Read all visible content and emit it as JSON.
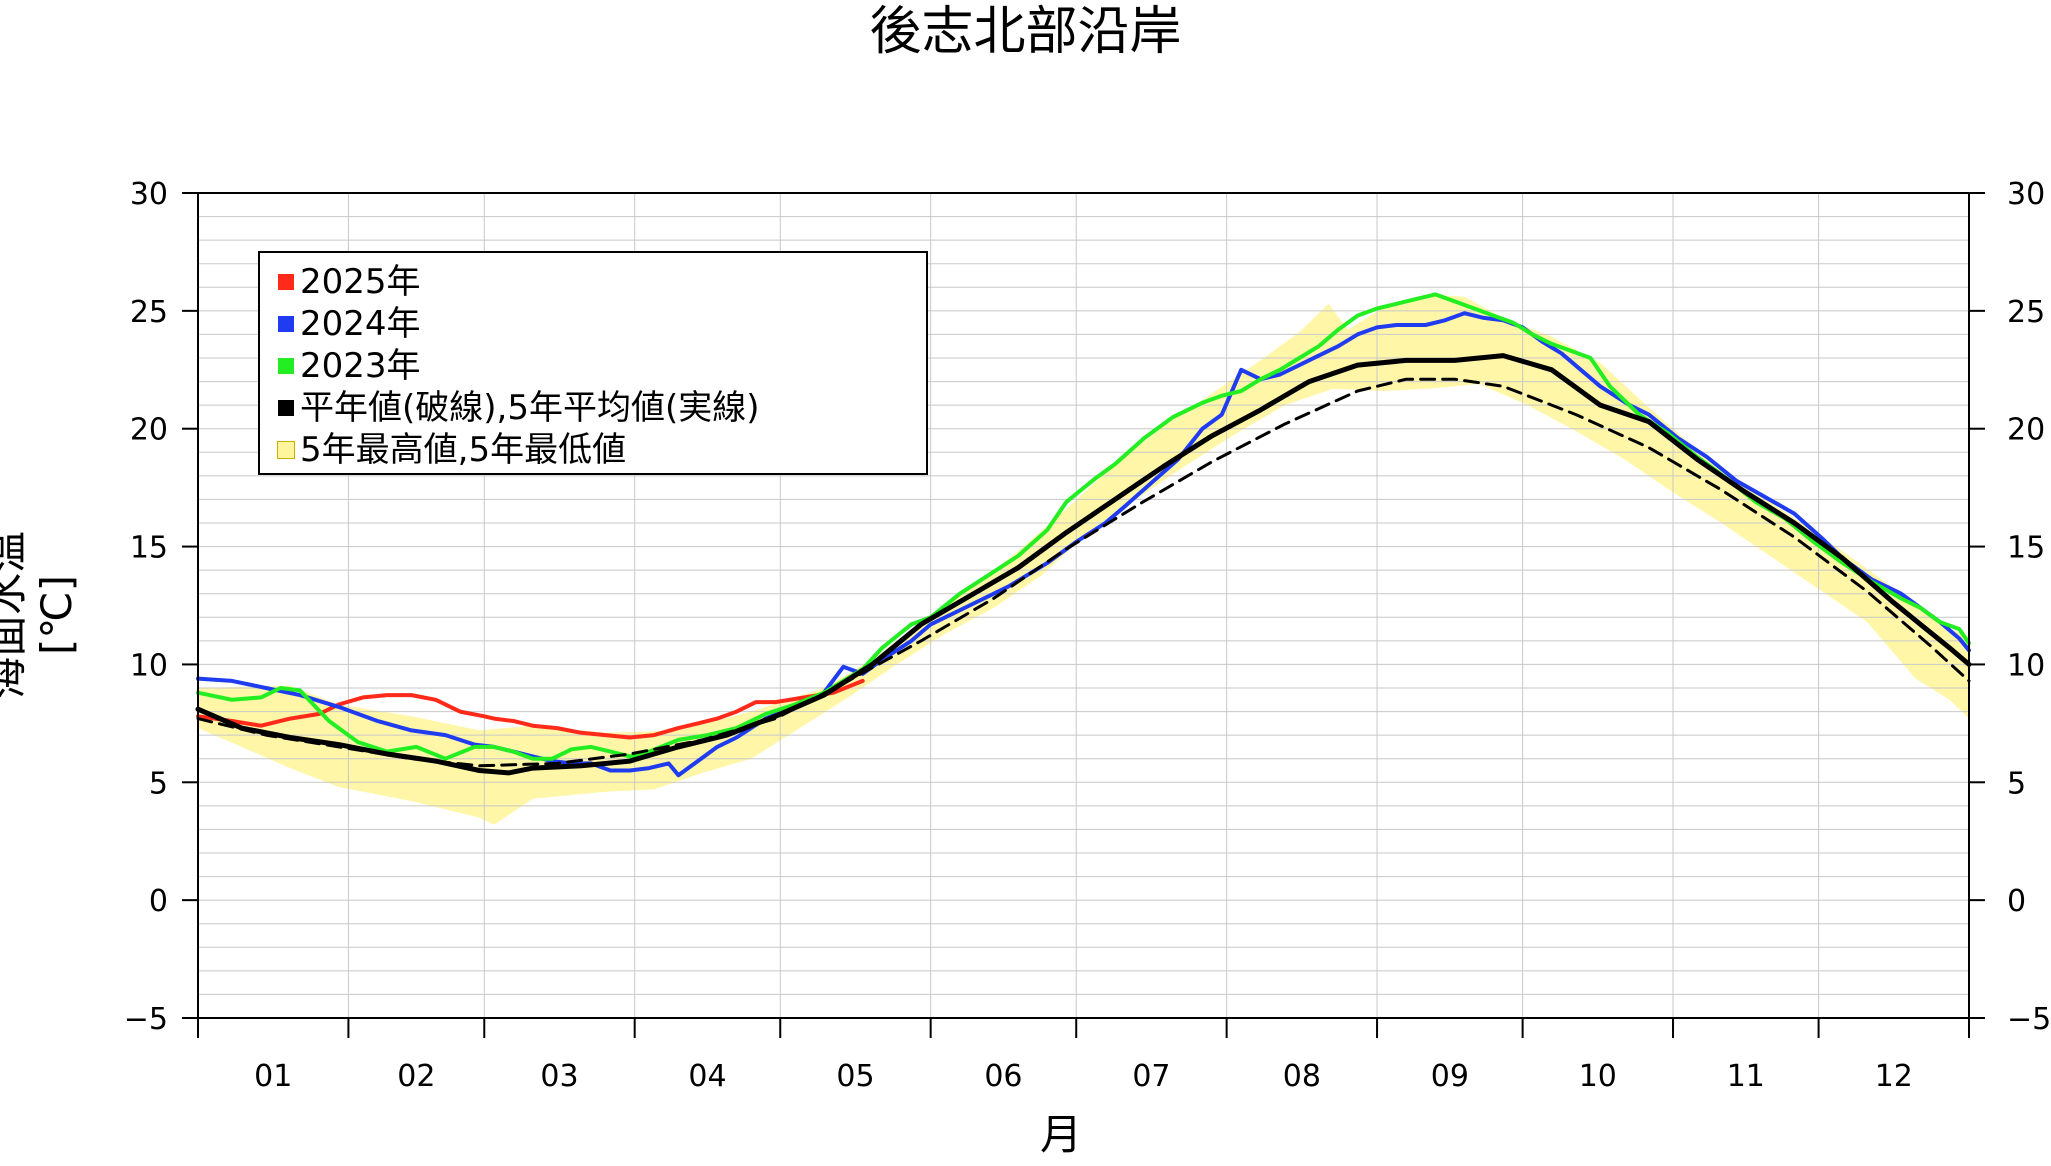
{
  "chart_data": {
    "type": "line",
    "title": "後志北部沿岸",
    "xlabel": "月",
    "ylabel": "海面水温[℃]",
    "ylim": [
      -5,
      30
    ],
    "yticks": [
      "−5",
      "0",
      "5",
      "10",
      "15",
      "20",
      "25",
      "30"
    ],
    "month_labels": [
      "01",
      "02",
      "03",
      "04",
      "05",
      "06",
      "07",
      "08",
      "09",
      "10",
      "11",
      "12"
    ],
    "grid": true,
    "legend_position": "top-left",
    "x_unit": "day of year",
    "series": [
      {
        "name": "2025年",
        "color": "#ff2a1a",
        "points": [
          [
            1,
            7.8
          ],
          [
            8,
            7.6
          ],
          [
            14,
            7.4
          ],
          [
            20,
            7.7
          ],
          [
            26,
            7.9
          ],
          [
            30,
            8.3
          ],
          [
            35,
            8.6
          ],
          [
            40,
            8.7
          ],
          [
            45,
            8.7
          ],
          [
            50,
            8.5
          ],
          [
            55,
            8.0
          ],
          [
            60,
            7.8
          ],
          [
            62,
            7.7
          ],
          [
            66,
            7.6
          ],
          [
            70,
            7.4
          ],
          [
            75,
            7.3
          ],
          [
            80,
            7.1
          ],
          [
            85,
            7.0
          ],
          [
            90,
            6.9
          ],
          [
            95,
            7.0
          ],
          [
            100,
            7.3
          ],
          [
            104,
            7.5
          ],
          [
            108,
            7.7
          ],
          [
            112,
            8.0
          ],
          [
            116,
            8.4
          ],
          [
            120,
            8.4
          ],
          [
            126,
            8.6
          ],
          [
            132,
            8.8
          ],
          [
            138,
            9.3
          ]
        ]
      },
      {
        "name": "2024年",
        "color": "#1f3cf0",
        "points": [
          [
            1,
            9.4
          ],
          [
            8,
            9.3
          ],
          [
            15,
            9.0
          ],
          [
            22,
            8.7
          ],
          [
            30,
            8.2
          ],
          [
            38,
            7.6
          ],
          [
            45,
            7.2
          ],
          [
            52,
            7.0
          ],
          [
            58,
            6.6
          ],
          [
            62,
            6.5
          ],
          [
            66,
            6.3
          ],
          [
            70,
            6.1
          ],
          [
            74,
            5.9
          ],
          [
            78,
            5.8
          ],
          [
            82,
            5.8
          ],
          [
            86,
            5.5
          ],
          [
            90,
            5.5
          ],
          [
            94,
            5.6
          ],
          [
            98,
            5.8
          ],
          [
            100,
            5.3
          ],
          [
            104,
            5.9
          ],
          [
            108,
            6.5
          ],
          [
            112,
            6.9
          ],
          [
            118,
            7.7
          ],
          [
            124,
            8.2
          ],
          [
            130,
            8.8
          ],
          [
            134,
            9.9
          ],
          [
            138,
            9.6
          ],
          [
            142,
            10.2
          ],
          [
            148,
            11.0
          ],
          [
            152,
            11.7
          ],
          [
            160,
            12.5
          ],
          [
            168,
            13.3
          ],
          [
            176,
            14.3
          ],
          [
            182,
            15.2
          ],
          [
            188,
            16.0
          ],
          [
            192,
            16.7
          ],
          [
            198,
            17.8
          ],
          [
            203,
            18.7
          ],
          [
            208,
            20.0
          ],
          [
            212,
            20.6
          ],
          [
            216,
            22.5
          ],
          [
            220,
            22.1
          ],
          [
            224,
            22.3
          ],
          [
            228,
            22.7
          ],
          [
            232,
            23.1
          ],
          [
            236,
            23.5
          ],
          [
            240,
            24.0
          ],
          [
            244,
            24.3
          ],
          [
            248,
            24.4
          ],
          [
            254,
            24.4
          ],
          [
            258,
            24.6
          ],
          [
            262,
            24.9
          ],
          [
            266,
            24.7
          ],
          [
            270,
            24.6
          ],
          [
            274,
            24.3
          ],
          [
            278,
            23.7
          ],
          [
            282,
            23.2
          ],
          [
            286,
            22.5
          ],
          [
            290,
            21.8
          ],
          [
            296,
            21.0
          ],
          [
            300,
            20.6
          ],
          [
            306,
            19.6
          ],
          [
            312,
            18.8
          ],
          [
            318,
            17.8
          ],
          [
            324,
            17.1
          ],
          [
            330,
            16.4
          ],
          [
            336,
            15.3
          ],
          [
            340,
            14.5
          ],
          [
            346,
            13.6
          ],
          [
            352,
            13.0
          ],
          [
            356,
            12.4
          ],
          [
            360,
            11.8
          ],
          [
            364,
            11.1
          ],
          [
            366,
            10.6
          ]
        ]
      },
      {
        "name": "2023年",
        "color": "#22ee22",
        "points": [
          [
            1,
            8.8
          ],
          [
            8,
            8.5
          ],
          [
            14,
            8.6
          ],
          [
            18,
            9.0
          ],
          [
            22,
            8.9
          ],
          [
            28,
            7.6
          ],
          [
            34,
            6.7
          ],
          [
            40,
            6.3
          ],
          [
            46,
            6.5
          ],
          [
            52,
            6.0
          ],
          [
            58,
            6.5
          ],
          [
            62,
            6.5
          ],
          [
            66,
            6.3
          ],
          [
            70,
            6.0
          ],
          [
            74,
            6.0
          ],
          [
            78,
            6.4
          ],
          [
            82,
            6.5
          ],
          [
            86,
            6.3
          ],
          [
            90,
            6.1
          ],
          [
            94,
            6.3
          ],
          [
            100,
            6.8
          ],
          [
            106,
            7.0
          ],
          [
            112,
            7.3
          ],
          [
            118,
            7.9
          ],
          [
            124,
            8.3
          ],
          [
            130,
            8.8
          ],
          [
            134,
            9.3
          ],
          [
            138,
            9.8
          ],
          [
            142,
            10.7
          ],
          [
            148,
            11.7
          ],
          [
            152,
            12.0
          ],
          [
            158,
            13.0
          ],
          [
            164,
            13.8
          ],
          [
            170,
            14.6
          ],
          [
            176,
            15.7
          ],
          [
            180,
            16.9
          ],
          [
            186,
            17.9
          ],
          [
            190,
            18.5
          ],
          [
            196,
            19.6
          ],
          [
            202,
            20.5
          ],
          [
            208,
            21.1
          ],
          [
            212,
            21.4
          ],
          [
            216,
            21.6
          ],
          [
            220,
            22.1
          ],
          [
            224,
            22.5
          ],
          [
            228,
            23.0
          ],
          [
            232,
            23.5
          ],
          [
            236,
            24.2
          ],
          [
            240,
            24.8
          ],
          [
            244,
            25.1
          ],
          [
            248,
            25.3
          ],
          [
            252,
            25.5
          ],
          [
            256,
            25.7
          ],
          [
            260,
            25.4
          ],
          [
            264,
            25.1
          ],
          [
            268,
            24.8
          ],
          [
            272,
            24.5
          ],
          [
            276,
            24.0
          ],
          [
            280,
            23.6
          ],
          [
            284,
            23.3
          ],
          [
            288,
            23.0
          ],
          [
            292,
            21.8
          ],
          [
            298,
            20.6
          ],
          [
            304,
            19.8
          ],
          [
            310,
            18.8
          ],
          [
            316,
            17.9
          ],
          [
            322,
            16.9
          ],
          [
            328,
            16.2
          ],
          [
            334,
            15.2
          ],
          [
            340,
            14.3
          ],
          [
            346,
            13.5
          ],
          [
            352,
            12.8
          ],
          [
            356,
            12.4
          ],
          [
            360,
            11.8
          ],
          [
            364,
            11.5
          ],
          [
            366,
            10.9
          ]
        ]
      },
      {
        "name": "平年値(破線)",
        "color": "#000000",
        "style": "dashed",
        "points": [
          [
            1,
            7.7
          ],
          [
            15,
            7.0
          ],
          [
            30,
            6.5
          ],
          [
            45,
            6.0
          ],
          [
            59,
            5.7
          ],
          [
            75,
            5.8
          ],
          [
            90,
            6.2
          ],
          [
            105,
            6.8
          ],
          [
            120,
            7.7
          ],
          [
            135,
            9.3
          ],
          [
            150,
            11.0
          ],
          [
            165,
            12.8
          ],
          [
            180,
            14.9
          ],
          [
            195,
            16.8
          ],
          [
            210,
            18.6
          ],
          [
            225,
            20.2
          ],
          [
            240,
            21.6
          ],
          [
            250,
            22.1
          ],
          [
            260,
            22.1
          ],
          [
            270,
            21.8
          ],
          [
            285,
            20.6
          ],
          [
            300,
            19.2
          ],
          [
            315,
            17.4
          ],
          [
            330,
            15.4
          ],
          [
            345,
            13.1
          ],
          [
            358,
            10.8
          ],
          [
            366,
            9.3
          ]
        ]
      },
      {
        "name": "5年平均値(実線)",
        "color": "#000000",
        "style": "solid",
        "points": [
          [
            1,
            8.1
          ],
          [
            10,
            7.3
          ],
          [
            20,
            6.9
          ],
          [
            30,
            6.6
          ],
          [
            40,
            6.2
          ],
          [
            50,
            5.9
          ],
          [
            59,
            5.5
          ],
          [
            65,
            5.4
          ],
          [
            70,
            5.6
          ],
          [
            80,
            5.7
          ],
          [
            90,
            5.9
          ],
          [
            100,
            6.5
          ],
          [
            110,
            7.0
          ],
          [
            120,
            7.8
          ],
          [
            130,
            8.7
          ],
          [
            140,
            10.0
          ],
          [
            150,
            11.7
          ],
          [
            160,
            12.9
          ],
          [
            170,
            14.1
          ],
          [
            180,
            15.6
          ],
          [
            190,
            17.0
          ],
          [
            200,
            18.4
          ],
          [
            210,
            19.7
          ],
          [
            220,
            20.8
          ],
          [
            230,
            22.0
          ],
          [
            240,
            22.7
          ],
          [
            250,
            22.9
          ],
          [
            260,
            22.9
          ],
          [
            270,
            23.1
          ],
          [
            280,
            22.5
          ],
          [
            290,
            21.0
          ],
          [
            300,
            20.3
          ],
          [
            310,
            18.7
          ],
          [
            320,
            17.3
          ],
          [
            330,
            16.0
          ],
          [
            340,
            14.5
          ],
          [
            350,
            12.7
          ],
          [
            356,
            11.7
          ],
          [
            362,
            10.7
          ],
          [
            366,
            10.0
          ]
        ]
      }
    ],
    "band": {
      "name": "5年最高値,5年最低値",
      "color": "#fff59d",
      "upper": [
        [
          1,
          9.0
        ],
        [
          20,
          9.1
        ],
        [
          30,
          8.3
        ],
        [
          45,
          7.8
        ],
        [
          59,
          7.2
        ],
        [
          70,
          7.4
        ],
        [
          85,
          7.1
        ],
        [
          100,
          7.2
        ],
        [
          115,
          8.0
        ],
        [
          130,
          9.0
        ],
        [
          140,
          10.2
        ],
        [
          150,
          11.8
        ],
        [
          160,
          13.2
        ],
        [
          170,
          14.8
        ],
        [
          180,
          16.6
        ],
        [
          190,
          18.5
        ],
        [
          200,
          20.1
        ],
        [
          210,
          21.5
        ],
        [
          220,
          22.9
        ],
        [
          228,
          24.1
        ],
        [
          234,
          25.3
        ],
        [
          238,
          24.2
        ],
        [
          245,
          25.1
        ],
        [
          255,
          25.7
        ],
        [
          262,
          25.6
        ],
        [
          270,
          24.7
        ],
        [
          280,
          23.9
        ],
        [
          290,
          22.8
        ],
        [
          300,
          20.9
        ],
        [
          310,
          19.1
        ],
        [
          320,
          17.6
        ],
        [
          330,
          16.2
        ],
        [
          340,
          14.8
        ],
        [
          350,
          13.3
        ],
        [
          356,
          12.3
        ],
        [
          362,
          11.5
        ],
        [
          366,
          11.2
        ]
      ],
      "lower": [
        [
          1,
          7.3
        ],
        [
          10,
          6.5
        ],
        [
          20,
          5.6
        ],
        [
          30,
          4.8
        ],
        [
          45,
          4.2
        ],
        [
          59,
          3.5
        ],
        [
          62,
          3.2
        ],
        [
          70,
          4.3
        ],
        [
          85,
          4.6
        ],
        [
          95,
          4.7
        ],
        [
          105,
          5.4
        ],
        [
          115,
          6.0
        ],
        [
          125,
          7.3
        ],
        [
          135,
          8.6
        ],
        [
          145,
          10.0
        ],
        [
          155,
          11.3
        ],
        [
          165,
          12.4
        ],
        [
          175,
          13.8
        ],
        [
          185,
          15.7
        ],
        [
          195,
          17.1
        ],
        [
          205,
          18.5
        ],
        [
          215,
          19.8
        ],
        [
          225,
          21.0
        ],
        [
          235,
          21.7
        ],
        [
          245,
          21.6
        ],
        [
          255,
          21.7
        ],
        [
          265,
          21.9
        ],
        [
          275,
          21.0
        ],
        [
          285,
          19.9
        ],
        [
          295,
          18.7
        ],
        [
          305,
          17.3
        ],
        [
          315,
          16.0
        ],
        [
          325,
          14.6
        ],
        [
          335,
          13.2
        ],
        [
          345,
          11.8
        ],
        [
          355,
          9.4
        ],
        [
          362,
          8.5
        ],
        [
          366,
          7.7
        ]
      ]
    }
  }
}
